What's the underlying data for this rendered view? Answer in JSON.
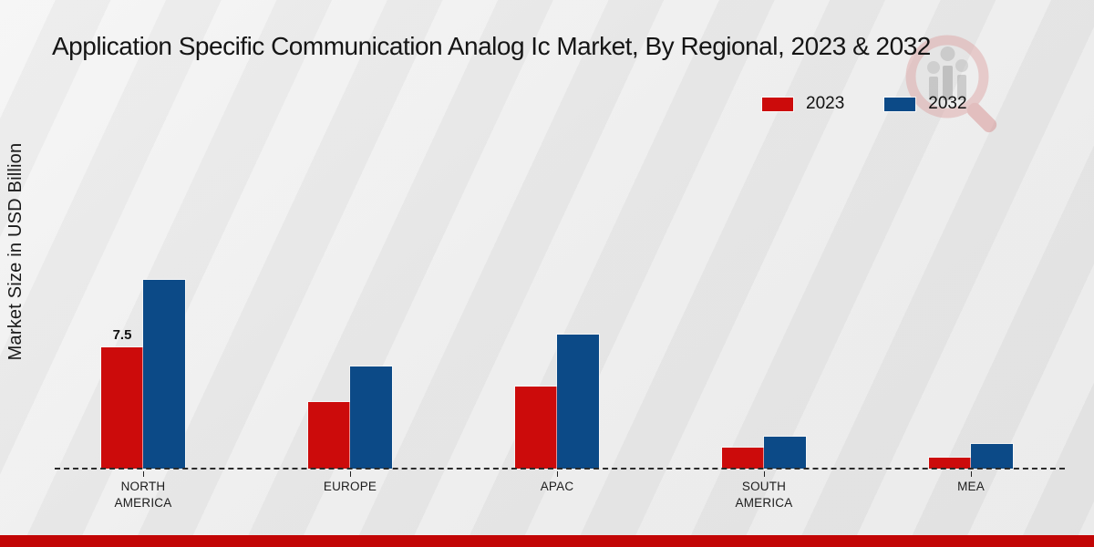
{
  "chart_data": {
    "type": "bar",
    "title": "Application Specific Communication Analog Ic Market, By Regional, 2023 & 2032",
    "ylabel": "Market Size in USD Billion",
    "xlabel": "",
    "categories": [
      "NORTH AMERICA",
      "EUROPE",
      "APAC",
      "SOUTH AMERICA",
      "MEA"
    ],
    "series": [
      {
        "name": "2023",
        "color": "#cc0b0b",
        "values": [
          7.5,
          4.1,
          5.1,
          1.3,
          0.7
        ]
      },
      {
        "name": "2032",
        "color": "#0c4a87",
        "values": [
          11.7,
          6.3,
          8.3,
          2.0,
          1.5
        ]
      }
    ],
    "annotations": [
      {
        "series": "2023",
        "category": "NORTH AMERICA",
        "text": "7.5"
      }
    ],
    "ylim": [
      0,
      12
    ],
    "grid": false,
    "legend_position": "top-right",
    "baseline_style": "dashed"
  },
  "colors": {
    "background": "#ececec",
    "footer_band": "#c20505",
    "baseline": "#2b2b2b",
    "text": "#151515"
  },
  "watermark": {
    "name": "market-research-magnifier-logo"
  }
}
